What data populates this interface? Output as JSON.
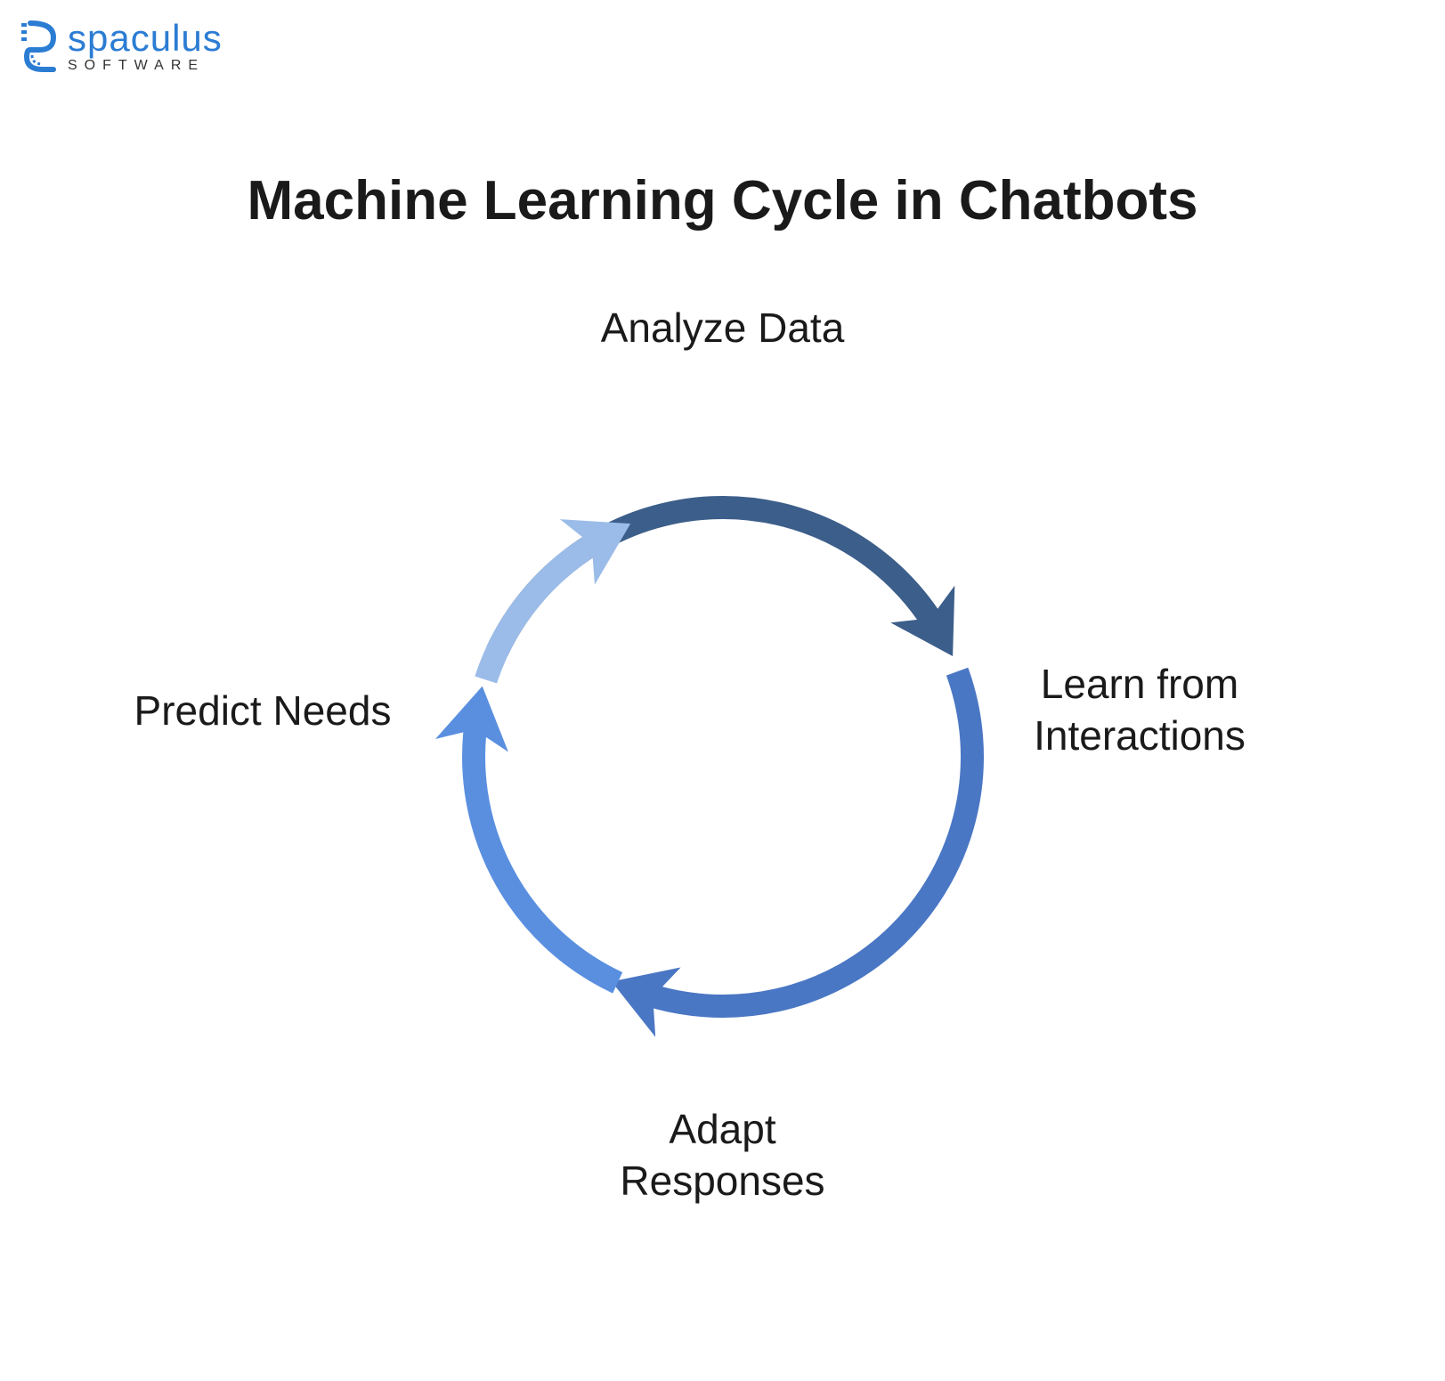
{
  "logo": {
    "company_name": "spaculus",
    "tagline": "SOFTWARE",
    "brand_color": "#2b7cd3",
    "tagline_color": "#333333"
  },
  "diagram": {
    "type": "cycle",
    "title": "Machine Learning Cycle in Chatbots",
    "title_fontsize": 62,
    "title_color": "#1a1a1a",
    "background_color": "#ffffff",
    "arrow_colors": {
      "top": "#3c5e8a",
      "right": "#4a77c4",
      "bottom": "#5a8fe0",
      "left": "#9bbce8"
    },
    "arrow_stroke_width": 26,
    "circle_radius": 280,
    "nodes": [
      {
        "id": "analyze",
        "label": "Analyze Data",
        "position": "top"
      },
      {
        "id": "learn",
        "label": "Learn from\nInteractions",
        "position": "right"
      },
      {
        "id": "adapt",
        "label": "Adapt\nResponses",
        "position": "bottom"
      },
      {
        "id": "predict",
        "label": "Predict Needs",
        "position": "left"
      }
    ],
    "label_fontsize": 46,
    "label_color": "#1a1a1a"
  }
}
